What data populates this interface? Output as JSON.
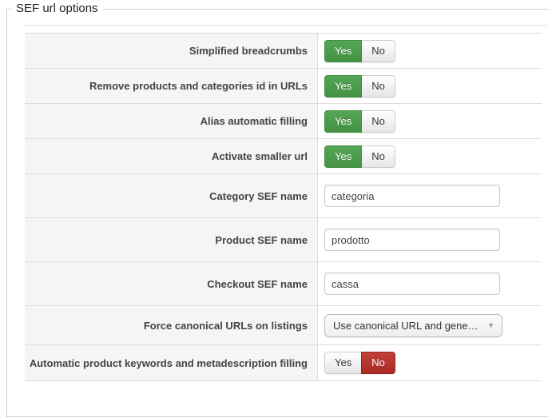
{
  "legend": "SEF url options",
  "toggle": {
    "yes_label": "Yes",
    "no_label": "No"
  },
  "colors": {
    "yes_active_green": "#459145",
    "no_active_red": "#a92b26",
    "label_cell_bg": "#f5f5f5",
    "row_border": "#dddddd"
  },
  "rows": [
    {
      "type": "toggle",
      "label": "Simplified breadcrumbs",
      "value": "Yes"
    },
    {
      "type": "toggle",
      "label": "Remove products and categories id in URLs",
      "value": "Yes"
    },
    {
      "type": "toggle",
      "label": "Alias automatic filling",
      "value": "Yes"
    },
    {
      "type": "toggle",
      "label": "Activate smaller url",
      "value": "Yes"
    },
    {
      "type": "text",
      "label": "Category SEF name",
      "value": "categoria"
    },
    {
      "type": "text",
      "label": "Product SEF name",
      "value": "prodotto"
    },
    {
      "type": "text",
      "label": "Checkout SEF name",
      "value": "cassa"
    },
    {
      "type": "select",
      "label": "Force canonical URLs on listings",
      "value": "Use canonical URL and gene…"
    },
    {
      "type": "toggle",
      "label": "Automatic product keywords and metadescription filling",
      "value": "No"
    }
  ]
}
